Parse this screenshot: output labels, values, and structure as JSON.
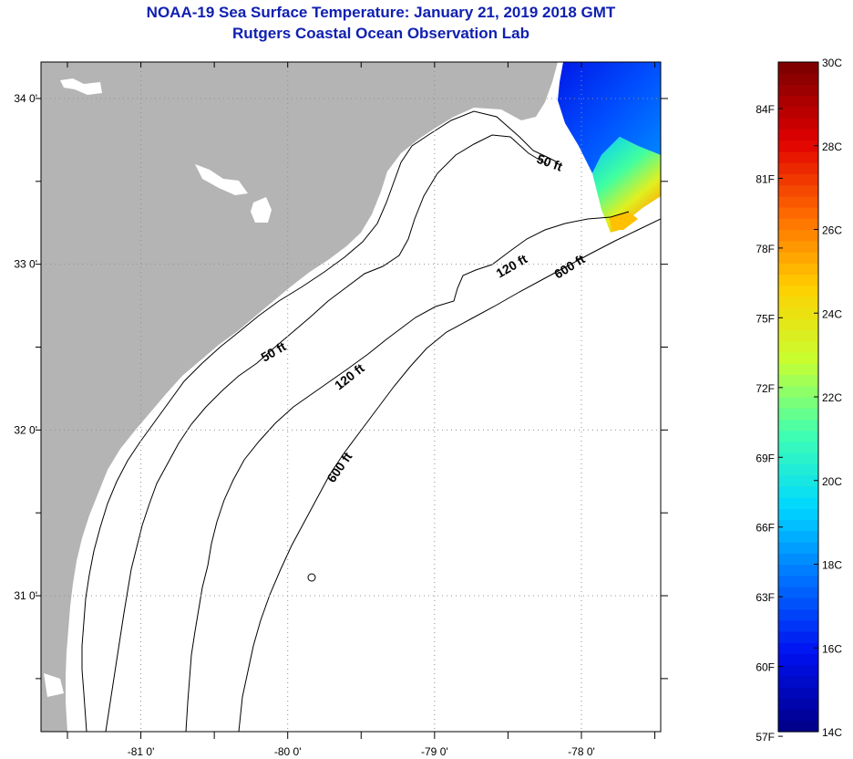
{
  "header": {
    "title": "NOAA-19 Sea Surface Temperature:  January 21, 2019 2018 GMT",
    "subtitle": "Rutgers Coastal Ocean Observation Lab"
  },
  "map": {
    "lon_range": [
      -81.68,
      -77.46
    ],
    "lat_range": [
      30.18,
      34.22
    ],
    "lon_ticks": [
      {
        "value": -81,
        "label": "-81 0'"
      },
      {
        "value": -80,
        "label": "-80 0'"
      },
      {
        "value": -79,
        "label": "-79 0'"
      },
      {
        "value": -78,
        "label": "-78 0'"
      }
    ],
    "lat_ticks": [
      {
        "value": 34,
        "label": "34 0'"
      },
      {
        "value": 33,
        "label": "33 0'"
      },
      {
        "value": 32,
        "label": "32 0'"
      },
      {
        "value": 31,
        "label": "31 0'"
      }
    ],
    "contours": [
      {
        "depth": "50 ft",
        "label": "50 ft"
      },
      {
        "depth": "120 ft",
        "label": "120 ft"
      },
      {
        "depth": "600 ft",
        "label": "600 ft"
      }
    ],
    "colors": {
      "land": "#b4b4b4",
      "water": "#ffffff",
      "grid": "#909090"
    }
  },
  "colorbar": {
    "fahrenheit": [
      "84F",
      "81F",
      "78F",
      "75F",
      "72F",
      "69F",
      "66F",
      "63F",
      "60F",
      "57F"
    ],
    "celsius": [
      "30C",
      "28C",
      "26C",
      "24C",
      "22C",
      "20C",
      "18C",
      "16C",
      "14C"
    ],
    "range_c": [
      14,
      30
    ],
    "colors": [
      "#00008c",
      "#0010f0",
      "#0070ff",
      "#00d8ff",
      "#40ffb0",
      "#c8ff30",
      "#ffd000",
      "#ff6a00",
      "#e00000",
      "#800000"
    ]
  }
}
